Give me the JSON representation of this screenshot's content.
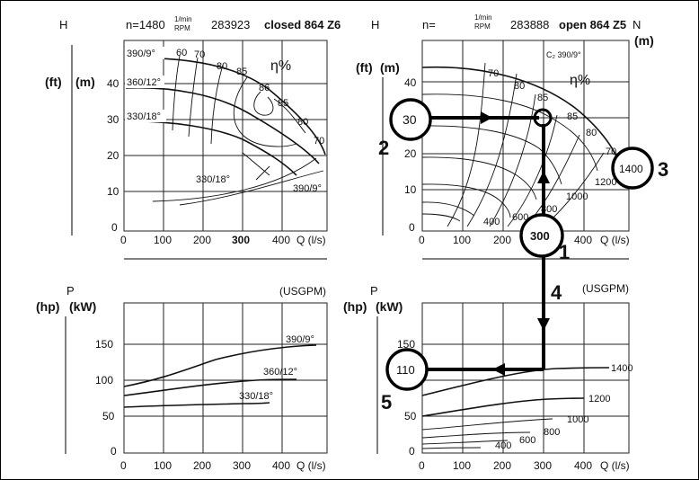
{
  "top_left": {
    "h": "H",
    "n": "n=1480",
    "unit_top": "1/min",
    "unit_bottom": "RPM",
    "code": "283923",
    "model": "closed 864 Z6",
    "ft": "(ft)",
    "m": "(m)",
    "eta": "η%",
    "y_ticks": [
      "40",
      "30",
      "20",
      "10",
      "0"
    ],
    "x_ticks": [
      "0",
      "100",
      "200",
      "300",
      "400"
    ],
    "x_label": "Q (l/s)",
    "curve_labels": [
      "390/9°",
      "360/12°",
      "330/18°",
      "330/18°",
      "390/9°"
    ],
    "eff_labels": [
      "60",
      "70",
      "80",
      "85",
      "86",
      "85",
      "80",
      "70"
    ]
  },
  "top_right": {
    "h": "H",
    "n": "n=",
    "unit_top": "1/min",
    "unit_bottom": "RPM",
    "code": "283888",
    "model": "open 864 Z5",
    "n_label": "N",
    "n_unit": "(m)",
    "ft": "(ft)",
    "m": "(m)",
    "eta": "η%",
    "c2": "C₂ 390/9°",
    "y_ticks": [
      "40",
      "30",
      "20",
      "10",
      "0"
    ],
    "x_ticks": [
      "0",
      "100",
      "200",
      "300",
      "400"
    ],
    "x_label": "Q (l/s)",
    "eff_labels": [
      "70",
      "80",
      "85",
      "85",
      "80",
      "70"
    ],
    "rpm_labels": [
      "1200",
      "1000",
      "800",
      "600",
      "400"
    ]
  },
  "bottom_left": {
    "p": "P",
    "hp": "(hp)",
    "kw": "(kW)",
    "usgpm": "(USGPM)",
    "y_ticks": [
      "150",
      "100",
      "50",
      "0"
    ],
    "x_ticks": [
      "0",
      "100",
      "200",
      "300",
      "400"
    ],
    "x_label": "Q (l/s)",
    "curve_labels": [
      "390/9°",
      "360/12°",
      "330/18°"
    ]
  },
  "bottom_right": {
    "p": "P",
    "hp": "(hp)",
    "kw": "(kW)",
    "usgpm": "(USGPM)",
    "y_ticks": [
      "150",
      "50",
      "0"
    ],
    "x_ticks": [
      "0",
      "100",
      "200",
      "300",
      "400"
    ],
    "x_label": "Q (l/s)",
    "rpm_labels": [
      "1400",
      "1200",
      "1000",
      "800",
      "600",
      "400"
    ]
  },
  "callouts": {
    "c30": "30",
    "c300": "300",
    "c1400": "1400",
    "c110": "110",
    "n1": "1",
    "n2": "2",
    "n3": "3",
    "n4": "4",
    "n5": "5"
  }
}
